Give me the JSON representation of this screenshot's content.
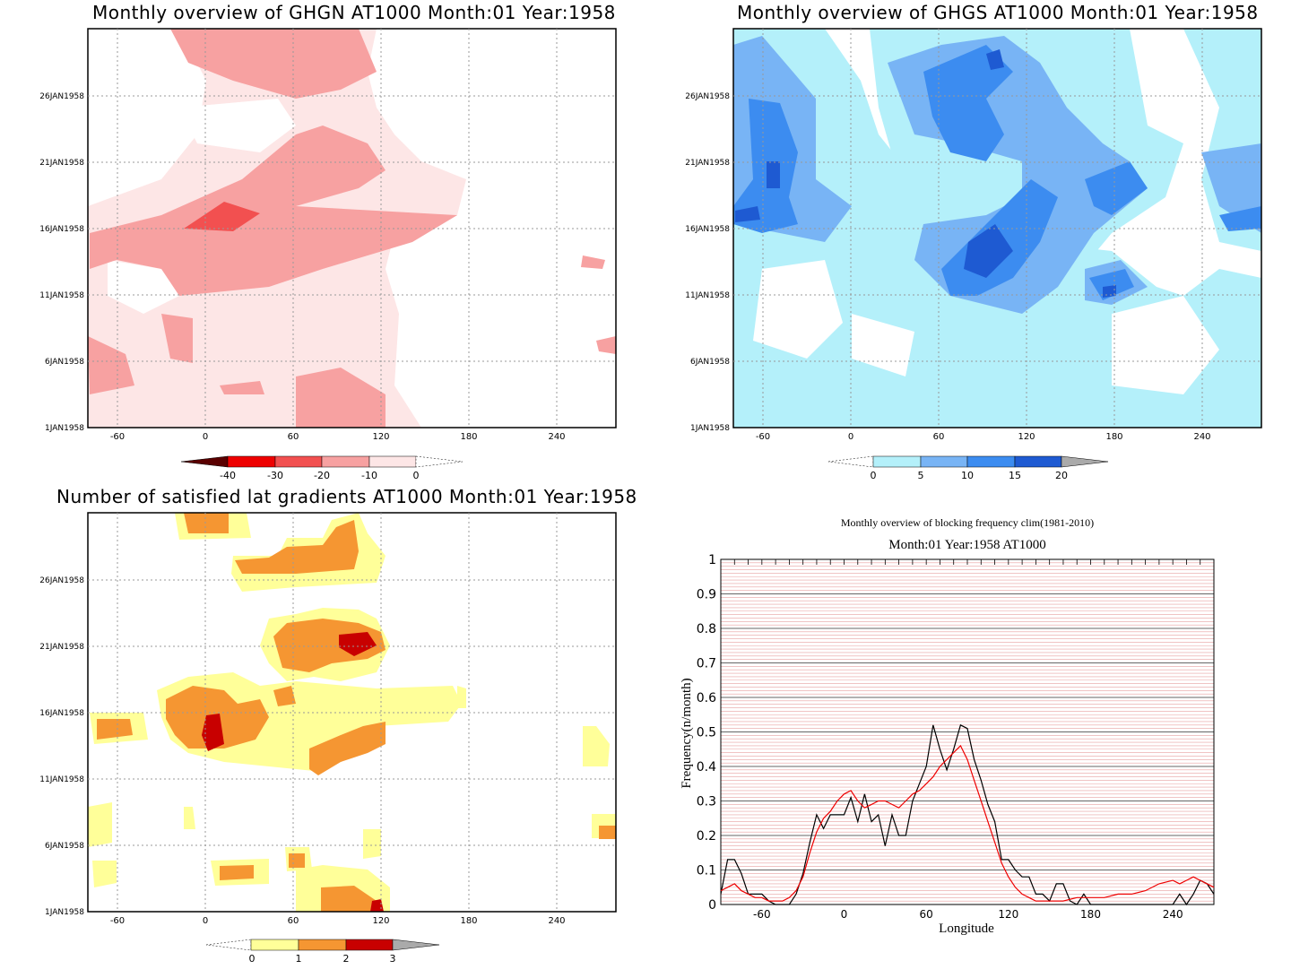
{
  "panels": {
    "ghgn": {
      "title": "Monthly overview of GHGN AT1000 Month:01 Year:1958",
      "x_ticks": [
        "-60",
        "0",
        "60",
        "120",
        "180",
        "240"
      ],
      "y_ticks": [
        "1JAN1958",
        "6JAN1958",
        "11JAN1958",
        "16JAN1958",
        "21JAN1958",
        "26JAN1958"
      ],
      "colorbar": {
        "labels": [
          "-40",
          "-30",
          "-20",
          "-10",
          "0"
        ],
        "colors": [
          "#5a0000",
          "#ee0000",
          "#f25050",
          "#f7a1a1",
          "#fde6e6"
        ]
      }
    },
    "ghgs": {
      "title": "Monthly overview of GHGS AT1000 Month:01 Year:1958",
      "x_ticks": [
        "-60",
        "0",
        "60",
        "120",
        "180",
        "240"
      ],
      "y_ticks": [
        "1JAN1958",
        "6JAN1958",
        "11JAN1958",
        "16JAN1958",
        "21JAN1958",
        "26JAN1958"
      ],
      "colorbar": {
        "labels": [
          "0",
          "5",
          "10",
          "15",
          "20"
        ],
        "colors": [
          "#b4f0fa",
          "#78b4f5",
          "#3c8cf0",
          "#1e5ad2",
          "#aaaaaa"
        ]
      }
    },
    "gradients": {
      "title": "Number of satisfied lat gradients AT1000 Month:01 Year:1958",
      "x_ticks": [
        "-60",
        "0",
        "60",
        "120",
        "180",
        "240"
      ],
      "y_ticks": [
        "1JAN1958",
        "6JAN1958",
        "11JAN1958",
        "16JAN1958",
        "21JAN1958",
        "26JAN1958"
      ],
      "colorbar": {
        "labels": [
          "0",
          "1",
          "2",
          "3"
        ],
        "colors": [
          "#ffff99",
          "#f59632",
          "#c80000",
          "#aaaaaa"
        ]
      }
    }
  },
  "chart_data": [
    {
      "type": "line",
      "title": "Monthly overview of blocking frequency clim(1981-2010)",
      "subtitle": "Month:01 Year:1958  AT1000",
      "xlabel": "Longitude",
      "ylabel": "Frequency(n/month)",
      "xlim": [
        -90,
        270
      ],
      "ylim": [
        0,
        1
      ],
      "x_ticks": [
        "-60",
        "0",
        "60",
        "120",
        "180",
        "240"
      ],
      "y_ticks": [
        "0",
        "0.1",
        "0.2",
        "0.3",
        "0.4",
        "0.5",
        "0.6",
        "0.7",
        "0.8",
        "0.9",
        "1"
      ],
      "grid": true,
      "series": [
        {
          "color": "#000000",
          "x": [
            -90,
            -85,
            -80,
            -75,
            -70,
            -65,
            -60,
            -55,
            -50,
            -45,
            -40,
            -35,
            -30,
            -25,
            -20,
            -15,
            -10,
            -5,
            0,
            5,
            10,
            15,
            20,
            25,
            30,
            35,
            40,
            45,
            50,
            55,
            60,
            65,
            70,
            75,
            80,
            85,
            90,
            95,
            100,
            105,
            110,
            115,
            120,
            125,
            130,
            135,
            140,
            145,
            150,
            155,
            160,
            165,
            170,
            175,
            180,
            185,
            190,
            200,
            210,
            220,
            230,
            240,
            245,
            250,
            255,
            260,
            265,
            270
          ],
          "y": [
            0.03,
            0.13,
            0.13,
            0.09,
            0.03,
            0.03,
            0.03,
            0.01,
            0.0,
            0.0,
            0.0,
            0.03,
            0.09,
            0.18,
            0.26,
            0.22,
            0.26,
            0.26,
            0.26,
            0.31,
            0.24,
            0.32,
            0.24,
            0.26,
            0.17,
            0.26,
            0.2,
            0.2,
            0.3,
            0.35,
            0.4,
            0.52,
            0.45,
            0.39,
            0.45,
            0.52,
            0.51,
            0.42,
            0.36,
            0.29,
            0.24,
            0.13,
            0.13,
            0.1,
            0.08,
            0.08,
            0.03,
            0.03,
            0.01,
            0.06,
            0.06,
            0.01,
            0.0,
            0.03,
            0.0,
            0.0,
            0.0,
            0.0,
            0.0,
            0.0,
            0.0,
            0.0,
            0.03,
            0.0,
            0.03,
            0.07,
            0.06,
            0.03
          ]
        },
        {
          "color": "#ee0000",
          "x": [
            -90,
            -85,
            -80,
            -75,
            -70,
            -65,
            -60,
            -55,
            -50,
            -45,
            -40,
            -35,
            -30,
            -25,
            -20,
            -15,
            -10,
            -5,
            0,
            5,
            10,
            15,
            20,
            25,
            30,
            35,
            40,
            45,
            50,
            55,
            60,
            65,
            70,
            75,
            80,
            85,
            90,
            95,
            100,
            105,
            110,
            115,
            120,
            125,
            130,
            135,
            140,
            145,
            150,
            155,
            160,
            170,
            180,
            190,
            200,
            210,
            220,
            230,
            240,
            245,
            250,
            255,
            260,
            265,
            270
          ],
          "y": [
            0.04,
            0.05,
            0.06,
            0.04,
            0.03,
            0.02,
            0.02,
            0.01,
            0.01,
            0.01,
            0.02,
            0.04,
            0.08,
            0.15,
            0.21,
            0.25,
            0.27,
            0.3,
            0.32,
            0.33,
            0.3,
            0.28,
            0.29,
            0.3,
            0.3,
            0.29,
            0.28,
            0.3,
            0.32,
            0.33,
            0.35,
            0.37,
            0.4,
            0.42,
            0.44,
            0.46,
            0.42,
            0.36,
            0.3,
            0.24,
            0.18,
            0.12,
            0.08,
            0.05,
            0.03,
            0.02,
            0.01,
            0.01,
            0.01,
            0.01,
            0.01,
            0.02,
            0.02,
            0.02,
            0.03,
            0.03,
            0.04,
            0.06,
            0.07,
            0.06,
            0.07,
            0.08,
            0.07,
            0.06,
            0.05
          ]
        }
      ]
    }
  ]
}
